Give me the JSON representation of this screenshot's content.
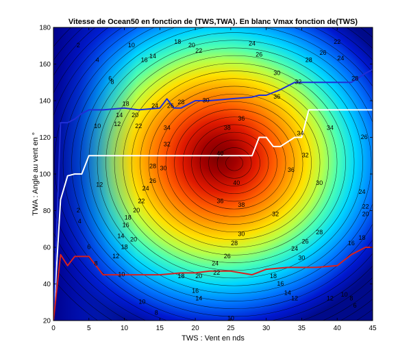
{
  "colors": {
    "background": "#ffffff",
    "vmax_curve": "#ffffff",
    "upper_curve": "#1f2fd6",
    "lower_curve": "#d62020",
    "contour_lines": "#000000"
  },
  "chart_data": {
    "type": "heatmap",
    "subtype": "filled-contour",
    "title": "Vitesse de Ocean50 en fonction de (TWS,TWA). En blanc Vmax fonction de(TWS)",
    "xlabel": "TWS : Vent en nds",
    "ylabel": "TWA : Angle au vent en °",
    "xlim": [
      0,
      45
    ],
    "ylim": [
      20,
      180
    ],
    "xticks": [
      0,
      5,
      10,
      15,
      20,
      25,
      30,
      35,
      40,
      45
    ],
    "yticks": [
      20,
      40,
      60,
      80,
      100,
      120,
      140,
      160,
      180
    ],
    "colormap": "jet",
    "grid": false,
    "legend": "none",
    "contour_labels": [
      {
        "text": "2",
        "x": 3.5,
        "y": 170
      },
      {
        "text": "4",
        "x": 6.2,
        "y": 162
      },
      {
        "text": "6",
        "x": 8.0,
        "y": 152
      },
      {
        "text": "10",
        "x": 11,
        "y": 170
      },
      {
        "text": "8",
        "x": 8.3,
        "y": 150
      },
      {
        "text": "10",
        "x": 6.2,
        "y": 126
      },
      {
        "text": "12",
        "x": 9.0,
        "y": 127
      },
      {
        "text": "14",
        "x": 9.3,
        "y": 132
      },
      {
        "text": "16",
        "x": 12.8,
        "y": 162
      },
      {
        "text": "18",
        "x": 10.2,
        "y": 138
      },
      {
        "text": "20",
        "x": 11.5,
        "y": 132
      },
      {
        "text": "22",
        "x": 12.0,
        "y": 126
      },
      {
        "text": "24",
        "x": 14.3,
        "y": 137
      },
      {
        "text": "26",
        "x": 16.5,
        "y": 137
      },
      {
        "text": "28",
        "x": 18.0,
        "y": 139
      },
      {
        "text": "30",
        "x": 21.5,
        "y": 140
      },
      {
        "text": "34",
        "x": 16.0,
        "y": 125
      },
      {
        "text": "32",
        "x": 16.0,
        "y": 116
      },
      {
        "text": "38",
        "x": 24.5,
        "y": 125
      },
      {
        "text": "40",
        "x": 23.5,
        "y": 111
      },
      {
        "text": "40",
        "x": 25.8,
        "y": 95
      },
      {
        "text": "36",
        "x": 26.5,
        "y": 130
      },
      {
        "text": "36",
        "x": 31.5,
        "y": 142
      },
      {
        "text": "36",
        "x": 33.5,
        "y": 102
      },
      {
        "text": "38",
        "x": 26.5,
        "y": 83
      },
      {
        "text": "36",
        "x": 23.5,
        "y": 85
      },
      {
        "text": "30",
        "x": 15.5,
        "y": 103
      },
      {
        "text": "28",
        "x": 14.0,
        "y": 104
      },
      {
        "text": "26",
        "x": 14.0,
        "y": 96
      },
      {
        "text": "24",
        "x": 13.0,
        "y": 92
      },
      {
        "text": "22",
        "x": 12.4,
        "y": 85
      },
      {
        "text": "20",
        "x": 11.7,
        "y": 80
      },
      {
        "text": "12",
        "x": 6.5,
        "y": 94
      },
      {
        "text": "14",
        "x": 9.5,
        "y": 66
      },
      {
        "text": "16",
        "x": 10.2,
        "y": 72
      },
      {
        "text": "18",
        "x": 10.5,
        "y": 76
      },
      {
        "text": "2",
        "x": 3.5,
        "y": 80
      },
      {
        "text": "4",
        "x": 3.7,
        "y": 74
      },
      {
        "text": "6",
        "x": 5.0,
        "y": 60
      },
      {
        "text": "8",
        "x": 6.0,
        "y": 51
      },
      {
        "text": "10",
        "x": 9.6,
        "y": 45
      },
      {
        "text": "12",
        "x": 8.8,
        "y": 55
      },
      {
        "text": "18",
        "x": 10.0,
        "y": 60
      },
      {
        "text": "20",
        "x": 11.3,
        "y": 64
      },
      {
        "text": "32",
        "x": 31.3,
        "y": 78
      },
      {
        "text": "30",
        "x": 26.5,
        "y": 67
      },
      {
        "text": "28",
        "x": 25.5,
        "y": 62
      },
      {
        "text": "26",
        "x": 24.5,
        "y": 55
      },
      {
        "text": "24",
        "x": 22.8,
        "y": 51
      },
      {
        "text": "22",
        "x": 23.0,
        "y": 46
      },
      {
        "text": "20",
        "x": 20.5,
        "y": 44
      },
      {
        "text": "18",
        "x": 18.0,
        "y": 44
      },
      {
        "text": "18",
        "x": 31.0,
        "y": 44
      },
      {
        "text": "16",
        "x": 32.0,
        "y": 40
      },
      {
        "text": "14",
        "x": 33.0,
        "y": 35
      },
      {
        "text": "12",
        "x": 34.0,
        "y": 32
      },
      {
        "text": "16",
        "x": 20.0,
        "y": 36
      },
      {
        "text": "14",
        "x": 20.5,
        "y": 32
      },
      {
        "text": "10",
        "x": 12.5,
        "y": 30
      },
      {
        "text": "8",
        "x": 14.5,
        "y": 24
      },
      {
        "text": "10",
        "x": 25.0,
        "y": 21
      },
      {
        "text": "12",
        "x": 39.0,
        "y": 32
      },
      {
        "text": "10",
        "x": 41.0,
        "y": 34
      },
      {
        "text": "8",
        "x": 42.0,
        "y": 32
      },
      {
        "text": "6",
        "x": 42.5,
        "y": 28
      },
      {
        "text": "24",
        "x": 34.0,
        "y": 59
      },
      {
        "text": "26",
        "x": 35.5,
        "y": 63
      },
      {
        "text": "28",
        "x": 37.5,
        "y": 68
      },
      {
        "text": "30",
        "x": 35.0,
        "y": 54
      },
      {
        "text": "16",
        "x": 42.0,
        "y": 62
      },
      {
        "text": "18",
        "x": 43.5,
        "y": 65
      },
      {
        "text": "20",
        "x": 44.0,
        "y": 78
      },
      {
        "text": "22",
        "x": 44.0,
        "y": 82
      },
      {
        "text": "24",
        "x": 43.5,
        "y": 90
      },
      {
        "text": "26",
        "x": 43.8,
        "y": 120
      },
      {
        "text": "28",
        "x": 42.5,
        "y": 152
      },
      {
        "text": "24",
        "x": 40.5,
        "y": 163
      },
      {
        "text": "26",
        "x": 38.0,
        "y": 166
      },
      {
        "text": "28",
        "x": 36.0,
        "y": 162
      },
      {
        "text": "30",
        "x": 31.5,
        "y": 155
      },
      {
        "text": "32",
        "x": 34.5,
        "y": 150
      },
      {
        "text": "34",
        "x": 34.8,
        "y": 122
      },
      {
        "text": "34",
        "x": 39.0,
        "y": 125
      },
      {
        "text": "32",
        "x": 35.5,
        "y": 110
      },
      {
        "text": "30",
        "x": 37.5,
        "y": 95
      },
      {
        "text": "26",
        "x": 29.0,
        "y": 165
      },
      {
        "text": "24",
        "x": 28.0,
        "y": 171
      },
      {
        "text": "22",
        "x": 40.0,
        "y": 172
      },
      {
        "text": "22",
        "x": 20.5,
        "y": 167
      },
      {
        "text": "20",
        "x": 19.5,
        "y": 170
      },
      {
        "text": "18",
        "x": 17.5,
        "y": 172
      },
      {
        "text": "14",
        "x": 14.0,
        "y": 164
      }
    ],
    "series": [
      {
        "color": "white",
        "x": [
          0,
          1,
          2,
          3,
          4,
          5,
          10,
          15,
          20,
          25,
          28,
          29,
          30,
          31,
          32,
          34,
          35,
          36,
          40,
          45
        ],
        "y": [
          20,
          86,
          99,
          100,
          100,
          110,
          110,
          110,
          110,
          110,
          110,
          120,
          120,
          115,
          115,
          120,
          120,
          135,
          135,
          135
        ]
      },
      {
        "color": "blue",
        "x": [
          0,
          1,
          2,
          3,
          4,
          5,
          7,
          10,
          12,
          15,
          16,
          17,
          18,
          20,
          22,
          25,
          28,
          29,
          30,
          32,
          34,
          36,
          38,
          40,
          42,
          44,
          45
        ],
        "y": [
          20,
          128,
          128,
          130,
          133,
          135,
          135,
          136,
          135,
          136,
          141,
          136,
          136,
          140,
          140,
          141,
          142,
          143,
          143,
          146,
          150,
          150,
          150,
          150,
          150,
          155,
          157
        ]
      },
      {
        "color": "red",
        "x": [
          0,
          1,
          2,
          3,
          4,
          5,
          6,
          7,
          10,
          12,
          15,
          18,
          20,
          22,
          25,
          28,
          30,
          33,
          35,
          37,
          40,
          42,
          44,
          45
        ],
        "y": [
          20,
          56,
          50,
          55,
          55,
          55,
          50,
          45,
          45,
          45,
          45,
          46,
          46,
          47,
          47,
          45,
          48,
          49,
          49,
          49,
          50,
          56,
          60,
          60
        ]
      }
    ]
  }
}
